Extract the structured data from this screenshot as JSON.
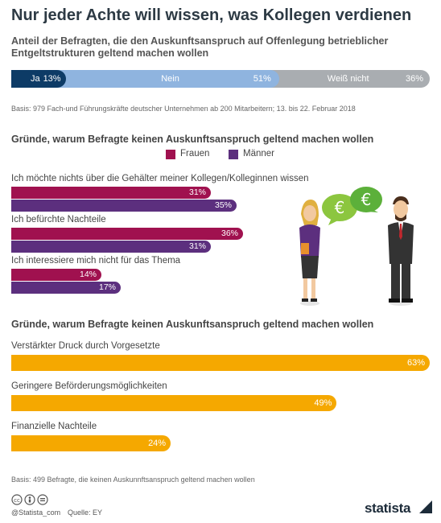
{
  "title": "Nur jeder Achte will wissen, was Kollegen verdienen",
  "subtitle": "Anteil der Befragten, die den Auskunftsanspruch auf Offenlegung betrieblicher Entgeltstrukturen geltend machen wollen",
  "basis1": "Basis: 979 Fach-und Führungskräfte deutscher Unternehmen ab 200 Mitarbeitern; 13. bis 22. Februar 2018",
  "section2_title": "Gründe, warum Befragte keinen Auskunftsanspruch geltend machen wollen",
  "section3_title": "Gründe, warum Befragte keinen Auskunftsanspruch geltend machen wollen",
  "basis2": "Basis: 499 Befragte, die keinen Auskunnftsanspruch geltend machen wollen",
  "footer": {
    "handle": "@Statista_com",
    "source": "Quelle: EY",
    "logo": "statista",
    "icons": "cc-by-nd-icons"
  },
  "colors": {
    "ja": "#0d3b66",
    "nein": "#8fb4df",
    "weiss": "#a9adb1",
    "frauen": "#a0114f",
    "maenner": "#5c2f7e",
    "orange": "#f5a800"
  },
  "chart_data": [
    {
      "type": "bar",
      "orientation": "stacked-horizontal",
      "categories": [
        "Ja",
        "Nein",
        "Weiß nicht"
      ],
      "values": [
        13,
        51,
        36
      ],
      "labels": [
        "13%",
        "51%",
        "36%"
      ]
    },
    {
      "type": "bar",
      "orientation": "horizontal",
      "categories": [
        "Ich möchte nichts über die Gehälter meiner Kollegen/Kolleginnen wissen",
        "Ich befürchte Nachteile",
        "Ich interessiere mich nicht für das Thema"
      ],
      "series": [
        {
          "name": "Frauen",
          "values": [
            31,
            36,
            14
          ],
          "labels": [
            "31%",
            "36%",
            "14%"
          ]
        },
        {
          "name": "Männer",
          "values": [
            35,
            31,
            17
          ],
          "labels": [
            "35%",
            "31%",
            "17%"
          ]
        }
      ],
      "legend": "top"
    },
    {
      "type": "bar",
      "orientation": "horizontal",
      "categories": [
        "Verstärkter Druck durch Vorgesetzte",
        "Geringere Beförderungsmöglichkeiten",
        "Finanzielle Nachteile"
      ],
      "values": [
        63,
        49,
        24
      ],
      "labels": [
        "63%",
        "49%",
        "24%"
      ]
    }
  ]
}
